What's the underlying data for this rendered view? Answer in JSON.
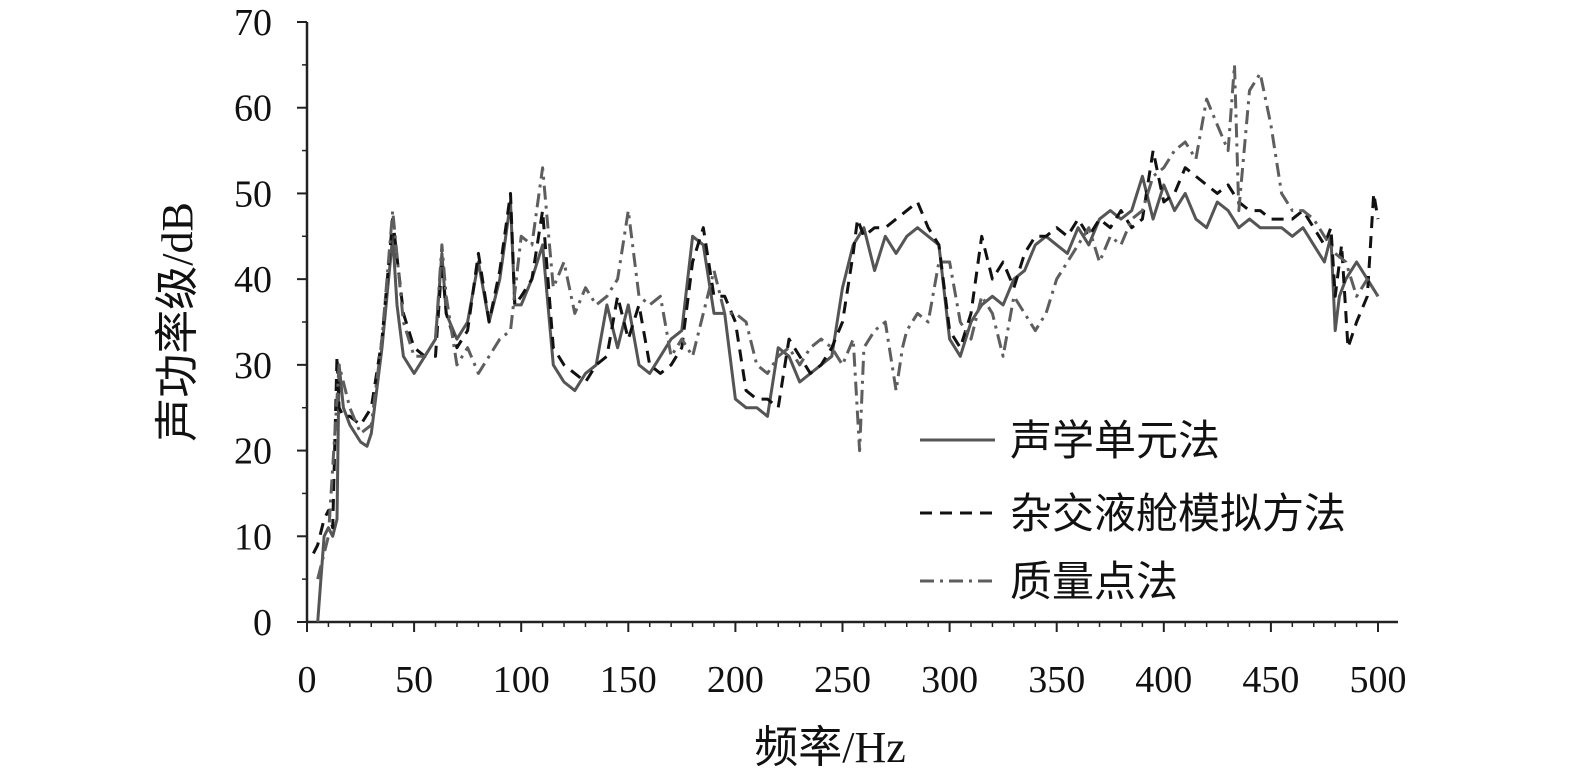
{
  "chart_data": {
    "type": "line",
    "title": "",
    "xlabel": "频率/Hz",
    "ylabel": "声功率级/dB",
    "xlim": [
      0,
      500
    ],
    "ylim": [
      0,
      70
    ],
    "xticks": [
      0,
      50,
      100,
      150,
      200,
      250,
      300,
      350,
      400,
      450,
      500
    ],
    "yticks": [
      0,
      10,
      20,
      30,
      40,
      50,
      60,
      70
    ],
    "grid": false,
    "legend_position": "right",
    "series": [
      {
        "name": "声学单元法",
        "style": "solid",
        "color": "#555555",
        "x": [
          5,
          8,
          10,
          12,
          14,
          15,
          17,
          20,
          25,
          28,
          30,
          35,
          40,
          42,
          45,
          50,
          55,
          60,
          63,
          65,
          70,
          75,
          80,
          85,
          90,
          95,
          97,
          100,
          105,
          110,
          115,
          120,
          125,
          130,
          135,
          140,
          145,
          150,
          155,
          160,
          165,
          170,
          175,
          180,
          185,
          190,
          195,
          200,
          205,
          210,
          215,
          220,
          225,
          230,
          235,
          240,
          245,
          250,
          255,
          260,
          265,
          270,
          275,
          280,
          285,
          290,
          295,
          300,
          305,
          310,
          315,
          320,
          325,
          330,
          335,
          340,
          345,
          350,
          355,
          360,
          365,
          370,
          375,
          380,
          385,
          390,
          395,
          400,
          405,
          410,
          415,
          420,
          425,
          430,
          435,
          440,
          445,
          450,
          455,
          460,
          465,
          470,
          475,
          478,
          480,
          482,
          485,
          490,
          495,
          500
        ],
        "y": [
          0,
          10,
          11,
          10,
          12,
          30,
          25,
          23,
          21,
          20.5,
          22,
          32,
          45,
          37,
          31,
          29,
          31,
          33,
          43,
          36,
          33,
          35,
          42,
          35,
          40,
          49,
          37,
          37,
          40,
          44,
          30,
          28,
          27,
          29,
          30,
          37,
          32,
          37,
          30,
          29,
          31,
          33,
          34,
          45,
          44,
          36,
          36,
          26,
          25,
          25,
          24,
          32,
          31,
          28,
          29,
          30,
          31,
          39,
          44,
          46,
          41,
          45,
          43,
          45,
          46,
          45,
          44,
          33,
          31,
          35,
          37,
          38,
          37,
          40,
          41,
          44,
          45,
          44,
          43,
          46,
          44,
          47,
          48,
          47,
          48,
          52,
          47,
          51,
          48,
          50,
          47,
          46,
          49,
          48,
          46,
          47,
          46,
          46,
          46,
          45,
          46,
          44,
          42,
          45,
          34,
          38,
          40,
          42,
          40,
          38
        ]
      },
      {
        "name": "杂交液舱模拟方法",
        "style": "dashed",
        "color": "#111111",
        "x": [
          3,
          5,
          8,
          10,
          12,
          14,
          15,
          17,
          20,
          25,
          30,
          35,
          40,
          45,
          50,
          55,
          60,
          63,
          65,
          70,
          75,
          80,
          85,
          90,
          95,
          97,
          100,
          105,
          110,
          115,
          120,
          125,
          130,
          135,
          140,
          145,
          150,
          155,
          160,
          165,
          170,
          175,
          180,
          185,
          190,
          195,
          200,
          205,
          210,
          215,
          220,
          225,
          230,
          235,
          240,
          245,
          250,
          255,
          257,
          260,
          265,
          270,
          275,
          280,
          285,
          290,
          295,
          300,
          305,
          310,
          315,
          320,
          325,
          330,
          335,
          340,
          345,
          350,
          355,
          360,
          365,
          370,
          375,
          380,
          385,
          390,
          395,
          400,
          405,
          410,
          415,
          420,
          425,
          430,
          435,
          440,
          445,
          450,
          455,
          460,
          465,
          470,
          475,
          478,
          480,
          483,
          486,
          490,
          495,
          498,
          500
        ],
        "y": [
          8,
          9,
          12,
          13,
          11,
          31,
          25,
          24,
          24,
          23,
          25,
          33,
          47,
          36,
          32,
          31,
          31,
          42,
          36,
          32,
          34,
          43,
          35,
          41,
          50,
          37,
          38,
          40,
          48,
          32,
          30,
          29,
          28,
          30,
          31,
          38,
          33,
          37,
          30,
          29,
          30,
          32,
          42,
          46,
          38,
          38,
          35,
          27,
          26,
          26,
          25,
          33,
          31,
          29,
          30,
          32,
          35,
          43,
          47,
          45,
          46,
          46,
          47,
          48,
          49,
          46,
          44,
          34,
          32,
          36,
          45,
          40,
          42,
          39,
          43,
          45,
          45,
          46,
          45,
          47,
          45,
          47,
          46,
          48,
          46,
          47,
          55,
          49,
          50,
          53,
          52,
          51,
          50,
          51,
          49,
          48,
          48,
          47,
          47,
          47,
          48,
          46,
          44,
          46,
          38,
          44,
          32,
          35,
          38,
          50,
          47
        ]
      },
      {
        "name": "质量点法",
        "style": "dashdot",
        "color": "#5e5e5e",
        "x": [
          5,
          10,
          15,
          20,
          25,
          30,
          35,
          40,
          45,
          50,
          55,
          60,
          63,
          65,
          70,
          75,
          80,
          85,
          90,
          95,
          100,
          105,
          110,
          115,
          120,
          125,
          130,
          135,
          140,
          145,
          150,
          155,
          160,
          165,
          170,
          175,
          180,
          185,
          190,
          195,
          200,
          205,
          210,
          215,
          220,
          225,
          230,
          235,
          240,
          245,
          250,
          255,
          258,
          260,
          265,
          270,
          275,
          278,
          280,
          285,
          290,
          295,
          300,
          305,
          310,
          315,
          320,
          325,
          330,
          335,
          340,
          345,
          350,
          355,
          360,
          365,
          370,
          375,
          380,
          385,
          390,
          395,
          400,
          405,
          410,
          415,
          420,
          425,
          430,
          433,
          435,
          440,
          445,
          450,
          455,
          460,
          465,
          470,
          475,
          480,
          485,
          490,
          495,
          500
        ],
        "y": [
          5,
          10,
          30,
          25,
          22,
          23,
          33,
          48,
          35,
          31,
          31,
          33,
          44,
          38,
          30,
          32,
          29,
          31,
          33,
          34,
          45,
          44,
          53,
          39,
          42,
          36,
          39,
          37,
          38,
          40,
          48,
          38,
          37,
          38,
          31,
          33,
          31,
          36,
          41,
          36,
          36,
          35,
          30,
          29,
          31,
          32,
          30,
          32,
          33,
          32,
          30,
          33,
          20,
          32,
          34,
          35,
          27,
          32,
          34,
          36,
          35,
          42,
          42,
          35,
          33,
          38,
          36,
          31,
          38,
          36,
          34,
          36,
          40,
          42,
          44,
          46,
          42,
          45,
          44,
          47,
          48,
          52,
          53,
          55,
          56,
          54,
          61,
          58,
          55,
          65,
          48,
          62,
          64,
          58,
          50,
          48,
          48,
          47,
          45,
          43,
          42,
          38,
          40,
          38
        ]
      }
    ]
  }
}
